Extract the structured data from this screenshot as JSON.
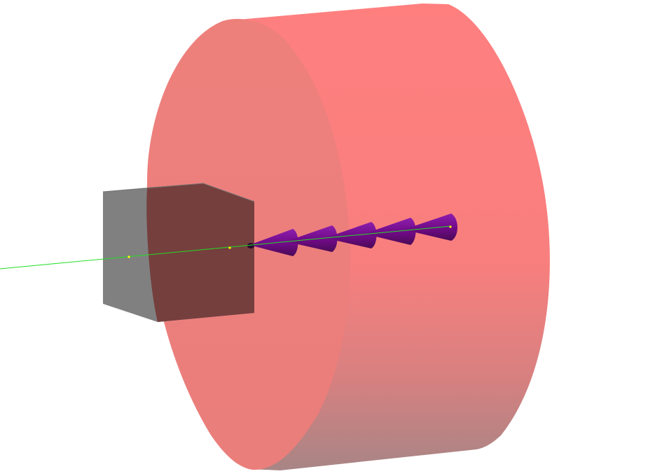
{
  "scene": {
    "background": "#ffffff",
    "colors": {
      "cylinder_side_light": "#ff7f7f",
      "cylinder_side_shadow": "#b08585",
      "cylinder_face": "#ee7f7c",
      "box_light": "#808080",
      "box_dark": "#753f3e",
      "cone_light": "#8a1aa6",
      "cone_mid": "#6b0a7f",
      "cone_dark": "#3e0a4a",
      "track": "#22dd22",
      "track_point": "#ffff00"
    },
    "objects": [
      {
        "name": "cylinder",
        "label": "",
        "icon": "cylinder-shape"
      },
      {
        "name": "box",
        "label": "",
        "icon": "cube-shape"
      },
      {
        "name": "cone-stack",
        "label": "",
        "icon": "cone-shape",
        "count": 5
      },
      {
        "name": "track-line",
        "label": "",
        "icon": "line-shape",
        "point_count": 3
      }
    ]
  }
}
